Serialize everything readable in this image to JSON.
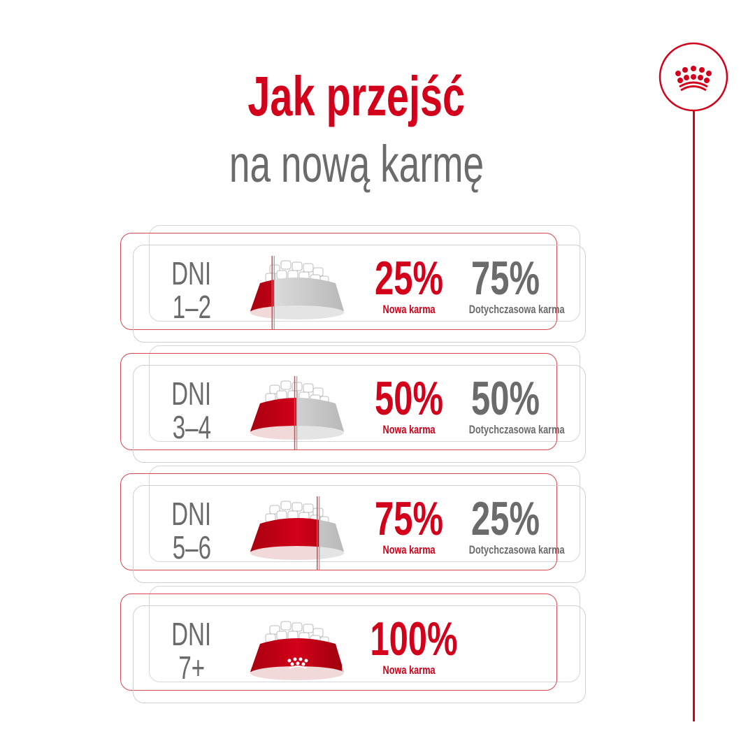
{
  "title": {
    "line1": "Jak przejść",
    "line2": "na nową karmę"
  },
  "brand": {
    "logo": "crown-logo",
    "color": "#d2001a"
  },
  "colors": {
    "new_food": "#d2001a",
    "old_food": "#6b6b6b"
  },
  "steps": [
    {
      "days_label": "DNI",
      "days": "1–2",
      "new_pct": "25%",
      "new_label": "Nowa karma",
      "old_pct": "75%",
      "old_label": "Dotychczasowa karma",
      "new_fraction": 0.25
    },
    {
      "days_label": "DNI",
      "days": "3–4",
      "new_pct": "50%",
      "new_label": "Nowa karma",
      "old_pct": "50%",
      "old_label": "Dotychczasowa karma",
      "new_fraction": 0.5
    },
    {
      "days_label": "DNI",
      "days": "5–6",
      "new_pct": "75%",
      "new_label": "Nowa karma",
      "old_pct": "25%",
      "old_label": "Dotychczasowa karma",
      "new_fraction": 0.75
    },
    {
      "days_label": "DNI",
      "days": "7+",
      "new_pct": "100%",
      "new_label": "Nowa karma",
      "new_fraction": 1
    }
  ]
}
